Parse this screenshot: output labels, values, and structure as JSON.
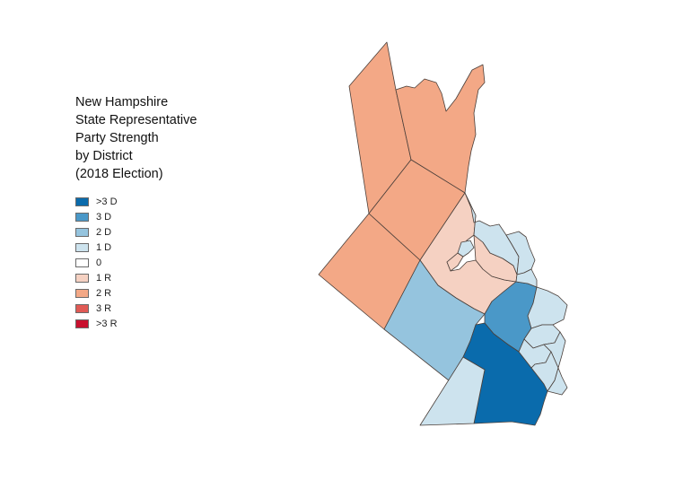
{
  "title": {
    "lines": [
      "New Hampshire",
      "State Representative",
      "Party Strength",
      "by District",
      "(2018 Election)"
    ]
  },
  "legend": {
    "items": [
      {
        "label": ">3 D",
        "color": "#0a6bac"
      },
      {
        "label": "3 D",
        "color": "#4a98c8"
      },
      {
        "label": "2 D",
        "color": "#95c4de"
      },
      {
        "label": "1 D",
        "color": "#cde3ee"
      },
      {
        "label": "0",
        "color": "#ffffff"
      },
      {
        "label": "1 R",
        "color": "#f5d1c2"
      },
      {
        "label": "2 R",
        "color": "#f3a886"
      },
      {
        "label": "3 R",
        "color": "#e05a55"
      },
      {
        "label": ">3 R",
        "color": "#c8102e"
      }
    ]
  },
  "map": {
    "districts": [
      {
        "id": "north-1",
        "category": "2 R"
      },
      {
        "id": "north-2",
        "category": "2 R"
      },
      {
        "id": "north-3",
        "category": "2 R"
      },
      {
        "id": "west",
        "category": "2 R"
      },
      {
        "id": "central-1r",
        "category": "1 R"
      },
      {
        "id": "central-1r-b",
        "category": "1 R"
      },
      {
        "id": "central-1r-c",
        "category": "1 R"
      },
      {
        "id": "southwest",
        "category": "2 D"
      },
      {
        "id": "east-3d",
        "category": "3 D"
      },
      {
        "id": "south-gt3d",
        "category": ">3 D"
      },
      {
        "id": "southwest-corner",
        "category": "1 D"
      },
      {
        "id": "east-1",
        "category": "1 D"
      },
      {
        "id": "east-2",
        "category": "1 D"
      },
      {
        "id": "east-3",
        "category": "1 D"
      },
      {
        "id": "east-4",
        "category": "1 D"
      },
      {
        "id": "east-5",
        "category": "1 D"
      },
      {
        "id": "east-6",
        "category": "1 D"
      },
      {
        "id": "east-7",
        "category": "1 D"
      },
      {
        "id": "east-8",
        "category": "1 D"
      },
      {
        "id": "lake-1",
        "category": "1 D"
      },
      {
        "id": "north-strip",
        "category": "1 D"
      }
    ]
  }
}
